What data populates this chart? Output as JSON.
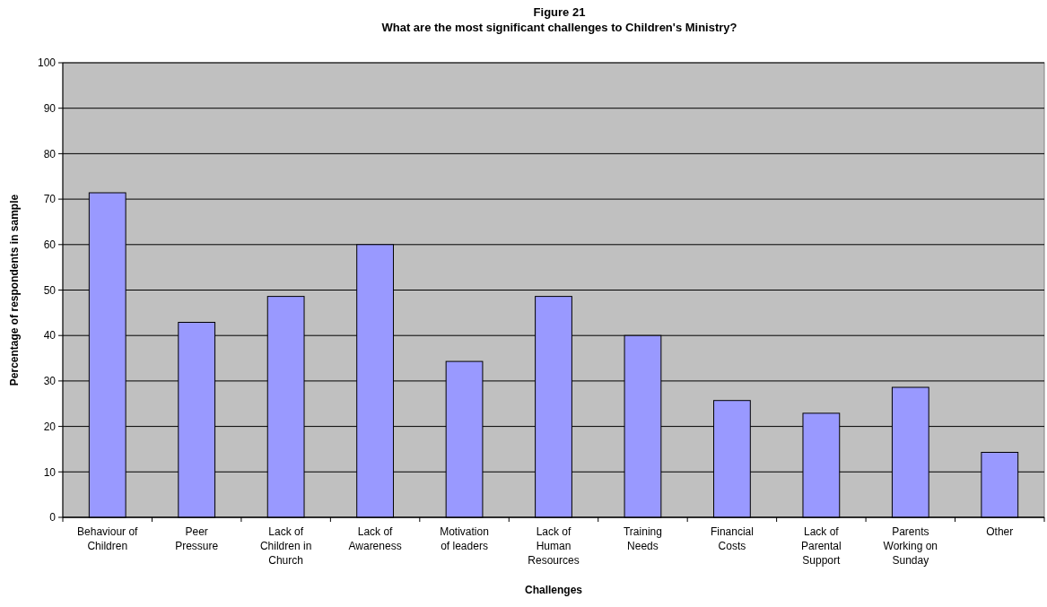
{
  "chart_data": {
    "type": "bar",
    "title": "Figure 21",
    "subtitle": "What are the most significant challenges to Children's Ministry?",
    "xlabel": "Challenges",
    "ylabel": "Percentage of respondents in sample",
    "categories": [
      "Behaviour of Children",
      "Peer Pressure",
      "Lack of Children in Church",
      "Lack of Awareness",
      "Motivation of leaders",
      "Lack of Human Resources",
      "Training Needs",
      "Financial Costs",
      "Lack of Parental Support",
      "Parents Working on Sunday",
      "Other"
    ],
    "values": [
      71.4,
      42.9,
      48.6,
      60.0,
      34.3,
      48.6,
      40.0,
      25.7,
      22.9,
      28.6,
      14.3
    ],
    "color": "#9999ff",
    "ylim": [
      0,
      100
    ],
    "yticks": [
      0,
      10,
      20,
      30,
      40,
      50,
      60,
      70,
      80,
      90,
      100
    ],
    "grid": "y"
  }
}
